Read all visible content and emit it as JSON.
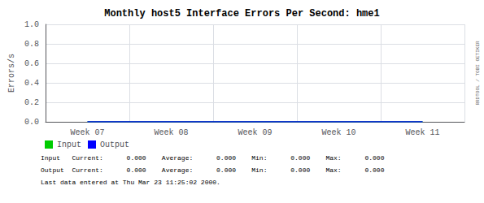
{
  "chart_data": {
    "type": "line",
    "title": "Monthly host5 Interface Errors Per Second: hme1",
    "ylabel": "Errors/s",
    "categories": [
      "Week 07",
      "Week 08",
      "Week 09",
      "Week 10",
      "Week 11"
    ],
    "series": [
      {
        "name": "Input",
        "color": "#00cc00",
        "values": [
          0,
          0,
          0,
          0,
          0
        ]
      },
      {
        "name": "Output",
        "color": "#0000ff",
        "values": [
          0,
          0,
          0,
          0,
          0
        ]
      }
    ],
    "ylim": [
      0.0,
      1.0
    ],
    "yticks": [
      {
        "value": 0.0,
        "label": "0.0"
      },
      {
        "value": 0.2,
        "label": "0.2"
      },
      {
        "value": 0.4,
        "label": "0.4"
      },
      {
        "value": 0.6,
        "label": "0.6"
      },
      {
        "value": 0.8,
        "label": "0.8"
      },
      {
        "value": 1.0,
        "label": "1.0"
      }
    ],
    "grid": true,
    "legend": "bottom",
    "annotations": [
      "Input   Current:      0.000    Average:      0.000    Min:      0.000    Max:      0.000",
      "Output  Current:      0.000    Average:      0.000    Min:      0.000    Max:      0.000",
      "Last data entered at Thu Mar 23 11:25:02 2000.",
      "RRDTOOL / TOBI OETIKER"
    ]
  }
}
